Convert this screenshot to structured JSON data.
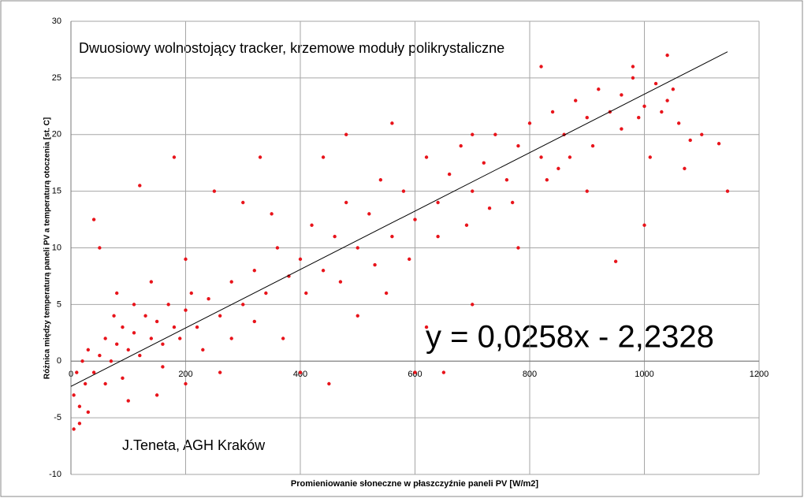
{
  "chart_data": {
    "type": "scatter",
    "title": "Dwuosiowy wolnostojący tracker, krzemowe moduły polikrystaliczne",
    "x_label": "Promieniowanie słoneczne  w płaszczyźnie  paneli PV [W/m2]",
    "y_label": "Różnica  między temperaturą paneli PV a temperaturą otoczenia [st. C]",
    "annotation": "J.Teneta, AGH Kraków",
    "equation_label": "y = 0,0258x - 2,2328",
    "trendline": {
      "slope": 0.0258,
      "intercept": -2.2328,
      "xrange": [
        0,
        1145
      ]
    },
    "color": "#e8141b",
    "grid": true,
    "xlim": [
      0,
      1200
    ],
    "ylim": [
      -10,
      30
    ],
    "xticks": [
      0,
      200,
      400,
      600,
      800,
      1000,
      1200
    ],
    "yticks": [
      -10,
      -5,
      0,
      5,
      10,
      15,
      20,
      25,
      30
    ],
    "x": [
      5,
      10,
      15,
      20,
      25,
      30,
      40,
      50,
      60,
      70,
      80,
      90,
      100,
      110,
      120,
      130,
      140,
      150,
      160,
      170,
      180,
      190,
      200,
      210,
      220,
      240,
      260,
      280,
      300,
      320,
      340,
      360,
      380,
      400,
      420,
      440,
      460,
      480,
      500,
      520,
      540,
      560,
      580,
      600,
      620,
      640,
      660,
      680,
      700,
      720,
      740,
      760,
      780,
      800,
      820,
      840,
      860,
      880,
      900,
      920,
      940,
      960,
      980,
      1000,
      1020,
      1040,
      1060,
      1080,
      1100,
      1130,
      1145,
      1040,
      5,
      15,
      40,
      50,
      80,
      120,
      180,
      200,
      250,
      300,
      350,
      260,
      400,
      450,
      600,
      620,
      700,
      780,
      900,
      1000,
      950,
      1070,
      850,
      1010,
      820,
      980,
      700,
      560,
      480,
      440,
      650,
      550,
      500,
      330,
      150,
      100,
      200,
      30,
      60,
      75,
      90,
      110,
      140,
      160,
      230,
      280,
      320,
      370,
      410,
      470,
      530,
      590,
      640,
      690,
      730,
      770,
      830,
      870,
      910,
      960,
      990,
      1030,
      1050
    ],
    "values": [
      -3,
      -1,
      -4,
      0,
      -2,
      1,
      -1,
      0.5,
      2,
      0,
      1.5,
      3,
      1,
      2.5,
      0.5,
      4,
      2,
      3.5,
      1.5,
      5,
      3,
      2,
      4.5,
      6,
      3,
      5.5,
      4,
      7,
      5,
      8,
      6,
      10,
      7.5,
      9,
      12,
      8,
      11,
      14,
      10,
      13,
      16,
      11,
      15,
      12.5,
      18,
      14,
      16.5,
      19,
      15,
      17.5,
      20,
      16,
      19,
      21,
      18,
      22,
      20,
      23,
      21.5,
      24,
      22,
      23.5,
      25,
      22.5,
      24.5,
      23,
      21,
      19.5,
      20,
      19.2,
      15,
      27,
      -6,
      -5.5,
      12.5,
      10,
      6,
      15.5,
      18,
      9,
      15,
      14,
      13,
      -1,
      -1,
      -2,
      -1,
      3,
      5,
      10,
      15,
      12,
      8.8,
      17,
      17,
      18,
      26,
      26,
      20,
      21,
      20,
      18,
      -1,
      6,
      4,
      18,
      -3,
      -3.5,
      -2,
      -4.5,
      -2,
      4,
      -1.5,
      5,
      7,
      -0.5,
      1,
      2,
      3.5,
      2,
      6,
      7,
      8.5,
      9,
      11,
      12,
      13.5,
      14,
      16,
      18,
      19,
      20.5,
      21.5,
      22,
      24
    ]
  }
}
